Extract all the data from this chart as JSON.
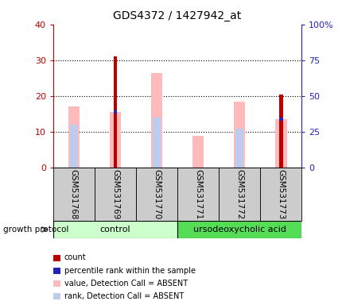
{
  "title": "GDS4372 / 1427942_at",
  "samples": [
    "GSM531768",
    "GSM531769",
    "GSM531770",
    "GSM531771",
    "GSM531772",
    "GSM531773"
  ],
  "count_values": [
    0,
    31,
    0,
    0,
    0,
    20.5
  ],
  "percentile_rank_values": [
    0,
    15.5,
    0,
    0,
    0,
    13.5
  ],
  "absent_value_values": [
    17,
    15.5,
    26.5,
    9,
    18.5,
    13.5
  ],
  "absent_rank_values": [
    12,
    0,
    14,
    0,
    11,
    0
  ],
  "left_ylim": [
    0,
    40
  ],
  "right_ylim": [
    0,
    100
  ],
  "left_yticks": [
    0,
    10,
    20,
    30,
    40
  ],
  "right_yticks": [
    0,
    25,
    50,
    75,
    100
  ],
  "right_yticklabels": [
    "0",
    "25",
    "50",
    "75",
    "100%"
  ],
  "color_count": "#bb0000",
  "color_percentile": "#2222bb",
  "color_absent_value": "#ffbbbb",
  "color_absent_rank": "#bbccee",
  "control_color": "#ccffcc",
  "urso_color": "#55dd55",
  "label_bg": "#cccccc",
  "background_color": "#ffffff",
  "title_fontsize": 10,
  "tick_fontsize": 8,
  "legend_fontsize": 8
}
